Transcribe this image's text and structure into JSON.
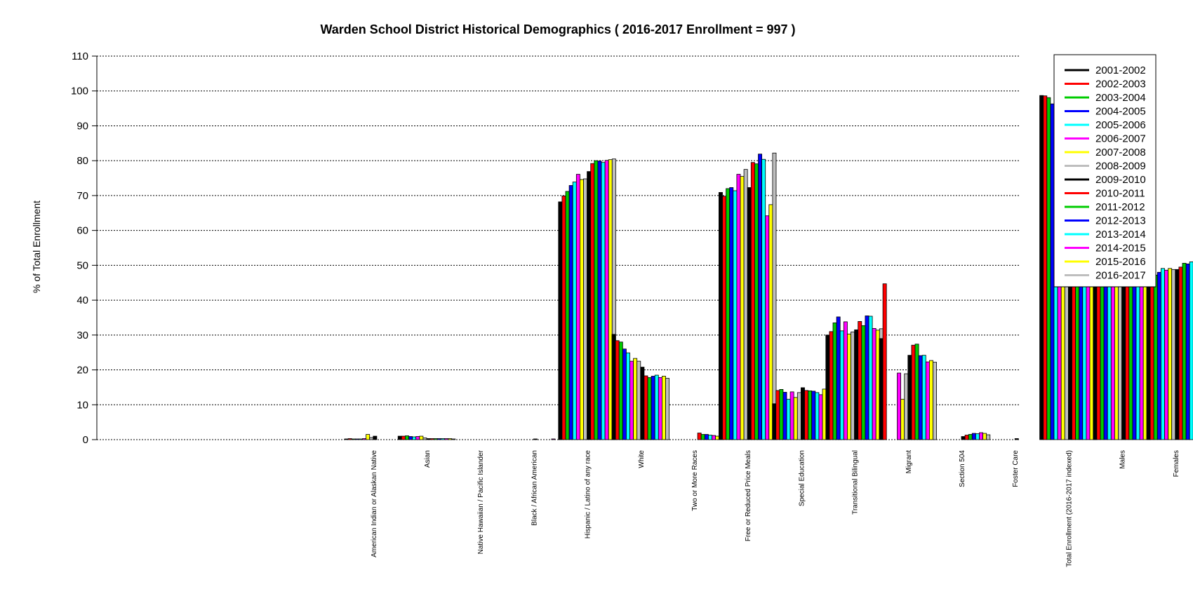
{
  "chart_data": {
    "type": "bar",
    "title": "Warden School District Historical Demographics  ( 2016-2017 Enrollment =  997 )",
    "xlabel": "",
    "ylabel": "% of Total Enrollment",
    "ylim": [
      0,
      110
    ],
    "yticks": [
      0,
      10,
      20,
      30,
      40,
      50,
      60,
      70,
      80,
      90,
      100,
      110
    ],
    "grid": "horizontal dotted",
    "legend_position": "top-right",
    "categories": [
      "American Indian or Alaskan Native",
      "Asian",
      "Native Hawaiian / Pacific Islander",
      "Black / African American",
      "Hispanic / Latino of any race",
      "White",
      "Two or More Races",
      "Free or Reduced Price Meals",
      "Special Education",
      "Transitional Bilingual",
      "Migrant",
      "Section 504",
      "Foster Care",
      "Total Enrollment (2016-2017 indexed)",
      "Males",
      "Females"
    ],
    "series": [
      {
        "name": "2001-2002",
        "color": "#000000",
        "values": [
          0.2,
          1.0,
          0,
          0,
          68.2,
          30.2,
          0,
          70.9,
          10.3,
          30.0,
          29.0,
          0,
          0,
          98.7,
          52.6,
          47.4
        ]
      },
      {
        "name": "2002-2003",
        "color": "#ff0000",
        "values": [
          0.3,
          1.0,
          0,
          0,
          69.9,
          28.4,
          0,
          69.8,
          14.1,
          31.0,
          44.7,
          0,
          0,
          98.6,
          53.0,
          46.8
        ]
      },
      {
        "name": "2003-2004",
        "color": "#00cc00",
        "values": [
          0.2,
          1.1,
          0,
          0,
          71.2,
          28.0,
          0,
          72.0,
          14.4,
          33.5,
          0,
          0,
          0,
          98.1,
          52.8,
          47.2
        ]
      },
      {
        "name": "2004-2005",
        "color": "#0000ff",
        "values": [
          0.2,
          0.9,
          0,
          0,
          72.9,
          26.0,
          0,
          72.3,
          13.6,
          35.2,
          0,
          0,
          0,
          96.3,
          51.6,
          48.0
        ]
      },
      {
        "name": "2005-2006",
        "color": "#00ffff",
        "values": [
          0.2,
          0.8,
          0,
          0,
          73.9,
          24.9,
          0,
          71.4,
          11.6,
          31.2,
          0,
          0,
          0,
          97.7,
          50.7,
          49.1
        ]
      },
      {
        "name": "2006-2007",
        "color": "#ff00ff",
        "values": [
          0.3,
          0.9,
          0,
          0,
          76.1,
          22.5,
          0,
          76.1,
          13.7,
          33.8,
          19.1,
          0,
          0,
          97.3,
          51.3,
          48.6
        ]
      },
      {
        "name": "2007-2008",
        "color": "#ffff00",
        "values": [
          1.5,
          1.0,
          0,
          0,
          74.6,
          23.3,
          0,
          75.5,
          12.1,
          30.3,
          11.6,
          0,
          0,
          98.0,
          51.0,
          49.1
        ]
      },
      {
        "name": "2008-2009",
        "color": "#bebebe",
        "values": [
          0.6,
          0.5,
          0,
          0,
          74.8,
          22.5,
          0,
          77.5,
          13.5,
          30.9,
          18.9,
          0,
          0,
          97.6,
          51.2,
          48.8
        ]
      },
      {
        "name": "2009-2010",
        "color": "#000000",
        "values": [
          1.0,
          0.3,
          0,
          0.2,
          76.9,
          20.8,
          0,
          72.3,
          14.9,
          31.5,
          24.2,
          0.9,
          0.3,
          96.6,
          51.1,
          48.8
        ]
      },
      {
        "name": "2010-2011",
        "color": "#ff0000",
        "values": [
          0,
          0.3,
          0,
          0,
          79.2,
          18.3,
          1.9,
          79.5,
          14.1,
          33.9,
          27.1,
          1.3,
          0,
          100.5,
          50.1,
          49.5
        ]
      },
      {
        "name": "2011-2012",
        "color": "#00cc00",
        "values": [
          0,
          0.3,
          0,
          0,
          80.0,
          17.8,
          1.5,
          79.1,
          14.0,
          32.7,
          27.4,
          1.5,
          0,
          99.1,
          49.7,
          50.6
        ]
      },
      {
        "name": "2012-2013",
        "color": "#0000ff",
        "values": [
          0,
          0.3,
          0,
          0,
          79.9,
          18.2,
          1.5,
          81.9,
          13.9,
          35.5,
          24.1,
          1.8,
          0,
          98.8,
          49.3,
          50.4
        ]
      },
      {
        "name": "2013-2014",
        "color": "#00ffff",
        "values": [
          0,
          0.3,
          0,
          0,
          79.5,
          18.5,
          1.3,
          80.4,
          13.5,
          35.4,
          24.2,
          1.7,
          0,
          83.4,
          48.8,
          51.0
        ]
      },
      {
        "name": "2014-2015",
        "color": "#ff00ff",
        "values": [
          0,
          0.3,
          0,
          0.2,
          80.1,
          17.8,
          1.2,
          64.2,
          12.9,
          31.9,
          22.3,
          2.0,
          0,
          100.4,
          48.3,
          51.1
        ]
      },
      {
        "name": "2015-2016",
        "color": "#ffff00",
        "values": [
          0,
          0.3,
          0,
          0,
          80.3,
          18.2,
          1.0,
          67.4,
          14.5,
          31.4,
          22.7,
          1.8,
          0,
          98.1,
          50.4,
          49.4
        ]
      },
      {
        "name": "2016-2017",
        "color": "#bebebe",
        "values": [
          0,
          0.2,
          0,
          0.4,
          80.5,
          17.6,
          0.9,
          82.2,
          15.1,
          31.8,
          22.2,
          1.4,
          0,
          100.0,
          48.2,
          51.6
        ]
      }
    ]
  }
}
